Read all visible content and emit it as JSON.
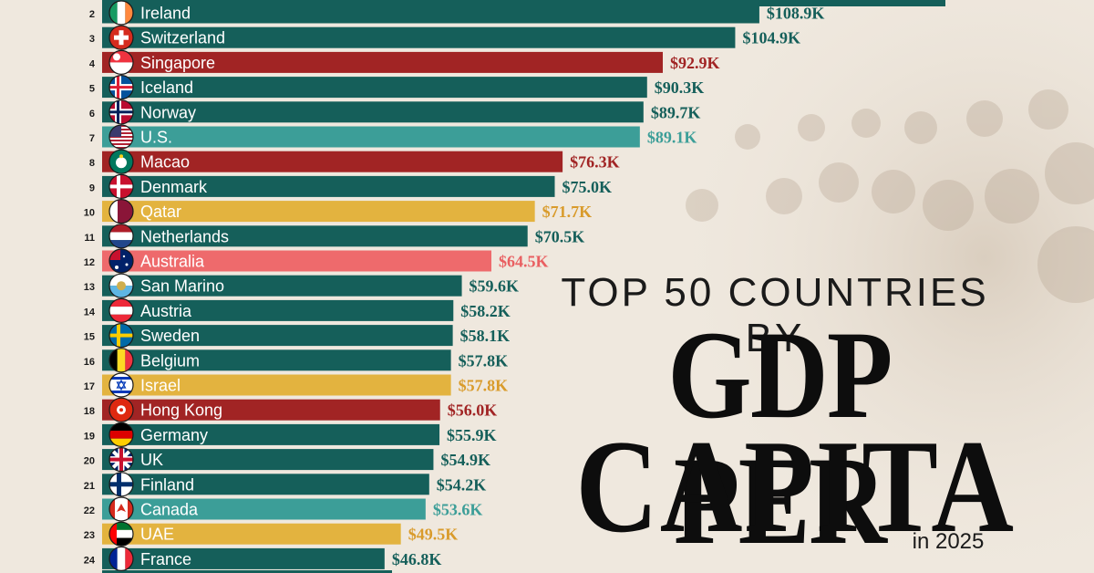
{
  "heading": {
    "top_line": "TOP 50 COUNTRIES BY",
    "main_line1": "GDP PER",
    "main_line2": "CAPITA",
    "sub_line": "in 2025"
  },
  "colors": {
    "background": "#efe8de",
    "europe": "#155f5a",
    "asia": "#a12424",
    "americas": "#3c9e98",
    "middle_east": "#e3b33f",
    "oceania": "#ee6a6c"
  },
  "chart_data": {
    "type": "bar",
    "orientation": "horizontal",
    "unit": "USD per capita (thousands)",
    "categories": [
      "Ireland",
      "Switzerland",
      "Singapore",
      "Iceland",
      "Norway",
      "U.S.",
      "Macao",
      "Denmark",
      "Qatar",
      "Netherlands",
      "Australia",
      "San Marino",
      "Austria",
      "Sweden",
      "Belgium",
      "Israel",
      "Hong Kong",
      "Germany",
      "UK",
      "Finland",
      "Canada",
      "UAE",
      "France"
    ],
    "ranks": [
      2,
      3,
      4,
      5,
      6,
      7,
      8,
      9,
      10,
      11,
      12,
      13,
      14,
      15,
      16,
      17,
      18,
      19,
      20,
      21,
      22,
      23,
      24
    ],
    "values": [
      108.9,
      104.9,
      92.9,
      90.3,
      89.7,
      89.1,
      76.3,
      75.0,
      71.7,
      70.5,
      64.5,
      59.6,
      58.2,
      58.1,
      57.8,
      57.8,
      56.0,
      55.9,
      54.9,
      54.2,
      53.6,
      49.5,
      46.8
    ],
    "value_labels": [
      "$108.9K",
      "$104.9K",
      "$92.9K",
      "$90.3K",
      "$89.7K",
      "$89.1K",
      "$76.3K",
      "$75.0K",
      "$71.7K",
      "$70.5K",
      "$64.5K",
      "$59.6K",
      "$58.2K",
      "$58.1K",
      "$57.8K",
      "$57.8K",
      "$56.0K",
      "$55.9K",
      "$54.9K",
      "$54.2K",
      "$53.6K",
      "$49.5K",
      "$46.8K"
    ],
    "groups": [
      "europe",
      "europe",
      "asia",
      "europe",
      "europe",
      "americas",
      "asia",
      "europe",
      "middle_east",
      "europe",
      "oceania",
      "europe",
      "europe",
      "europe",
      "europe",
      "middle_east",
      "asia",
      "europe",
      "europe",
      "europe",
      "americas",
      "middle_east",
      "europe"
    ],
    "flag_icons": [
      "ireland-flag-icon",
      "switzerland-flag-icon",
      "singapore-flag-icon",
      "iceland-flag-icon",
      "norway-flag-icon",
      "us-flag-icon",
      "macao-flag-icon",
      "denmark-flag-icon",
      "qatar-flag-icon",
      "netherlands-flag-icon",
      "australia-flag-icon",
      "san-marino-flag-icon",
      "austria-flag-icon",
      "sweden-flag-icon",
      "belgium-flag-icon",
      "israel-flag-icon",
      "hong-kong-flag-icon",
      "germany-flag-icon",
      "uk-flag-icon",
      "finland-flag-icon",
      "canada-flag-icon",
      "uae-flag-icon",
      "france-flag-icon"
    ]
  }
}
